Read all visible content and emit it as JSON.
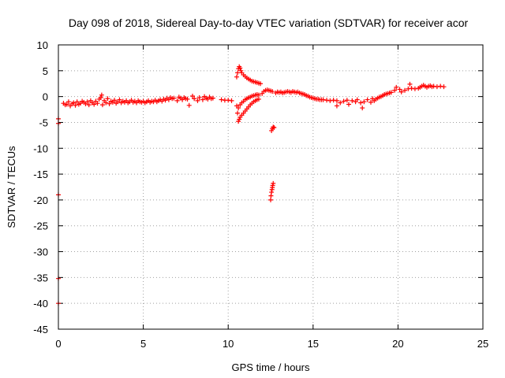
{
  "chart_data": {
    "type": "scatter",
    "title": "Day 098 of 2018, Sidereal Day-to-day VTEC variation (SDTVAR) for receiver acor",
    "xlabel": "GPS time / hours",
    "ylabel": "SDTVAR / TECUs",
    "xlim": [
      0,
      25
    ],
    "ylim": [
      -45,
      10
    ],
    "xticks": [
      0,
      5,
      10,
      15,
      20,
      25
    ],
    "yticks": [
      10,
      5,
      0,
      -5,
      -10,
      -15,
      -20,
      -25,
      -30,
      -35,
      -40,
      -45
    ],
    "grid": true,
    "marker": "plus",
    "series": [
      {
        "name": "SDTVAR",
        "color": "#ff0000",
        "points": [
          [
            0.0,
            -4.3
          ],
          [
            0.0,
            -5.2
          ],
          [
            0.0,
            -19.0
          ],
          [
            0.0,
            -35.2
          ],
          [
            0.0,
            -40.0
          ],
          [
            0.3,
            -1.3
          ],
          [
            0.4,
            -1.6
          ],
          [
            0.5,
            -1.5
          ],
          [
            0.6,
            -1.0
          ],
          [
            0.7,
            -1.8
          ],
          [
            0.8,
            -1.4
          ],
          [
            0.9,
            -1.2
          ],
          [
            1.0,
            -1.7
          ],
          [
            1.1,
            -1.0
          ],
          [
            1.2,
            -1.5
          ],
          [
            1.3,
            -1.3
          ],
          [
            1.4,
            -0.9
          ],
          [
            1.5,
            -1.1
          ],
          [
            1.6,
            -1.4
          ],
          [
            1.7,
            -1.0
          ],
          [
            1.8,
            -1.6
          ],
          [
            1.9,
            -0.8
          ],
          [
            2.0,
            -1.2
          ],
          [
            2.1,
            -1.5
          ],
          [
            2.2,
            -0.9
          ],
          [
            2.3,
            -1.3
          ],
          [
            2.4,
            -0.5
          ],
          [
            2.5,
            -0.2
          ],
          [
            2.55,
            0.3
          ],
          [
            2.6,
            -1.6
          ],
          [
            2.7,
            -0.8
          ],
          [
            2.8,
            -1.2
          ],
          [
            2.9,
            -0.4
          ],
          [
            3.0,
            -1.4
          ],
          [
            3.1,
            -0.9
          ],
          [
            3.2,
            -1.1
          ],
          [
            3.3,
            -0.7
          ],
          [
            3.4,
            -1.3
          ],
          [
            3.5,
            -1.0
          ],
          [
            3.6,
            -0.6
          ],
          [
            3.7,
            -1.2
          ],
          [
            3.8,
            -0.9
          ],
          [
            3.9,
            -1.1
          ],
          [
            4.0,
            -0.8
          ],
          [
            4.1,
            -1.2
          ],
          [
            4.2,
            -1.0
          ],
          [
            4.3,
            -0.7
          ],
          [
            4.4,
            -1.1
          ],
          [
            4.5,
            -0.9
          ],
          [
            4.6,
            -1.2
          ],
          [
            4.7,
            -0.8
          ],
          [
            4.8,
            -1.0
          ],
          [
            4.9,
            -1.1
          ],
          [
            5.0,
            -0.9
          ],
          [
            5.1,
            -1.2
          ],
          [
            5.2,
            -1.0
          ],
          [
            5.3,
            -0.8
          ],
          [
            5.4,
            -1.1
          ],
          [
            5.5,
            -0.9
          ],
          [
            5.6,
            -1.0
          ],
          [
            5.7,
            -0.7
          ],
          [
            5.8,
            -1.0
          ],
          [
            5.9,
            -0.8
          ],
          [
            6.0,
            -0.6
          ],
          [
            6.1,
            -0.9
          ],
          [
            6.2,
            -0.5
          ],
          [
            6.3,
            -0.7
          ],
          [
            6.4,
            -0.3
          ],
          [
            6.5,
            -0.6
          ],
          [
            6.6,
            -0.2
          ],
          [
            6.7,
            -0.4
          ],
          [
            6.8,
            -0.3
          ],
          [
            7.0,
            -0.8
          ],
          [
            7.1,
            -0.1
          ],
          [
            7.2,
            -0.3
          ],
          [
            7.3,
            -0.6
          ],
          [
            7.4,
            -0.2
          ],
          [
            7.5,
            -0.4
          ],
          [
            7.6,
            -0.5
          ],
          [
            7.7,
            -1.7
          ],
          [
            7.9,
            0.1
          ],
          [
            8.0,
            -0.4
          ],
          [
            8.2,
            -0.8
          ],
          [
            8.3,
            -0.2
          ],
          [
            8.5,
            -0.6
          ],
          [
            8.6,
            0.0
          ],
          [
            8.7,
            -0.3
          ],
          [
            8.8,
            -0.5
          ],
          [
            8.9,
            -0.1
          ],
          [
            9.0,
            -0.4
          ],
          [
            9.1,
            -0.3
          ],
          [
            9.6,
            -0.6
          ],
          [
            9.8,
            -0.7
          ],
          [
            10.0,
            -0.7
          ],
          [
            10.2,
            -0.8
          ],
          [
            10.5,
            3.8
          ],
          [
            10.55,
            4.6
          ],
          [
            10.6,
            5.4
          ],
          [
            10.65,
            5.8
          ],
          [
            10.7,
            5.5
          ],
          [
            10.75,
            5.0
          ],
          [
            10.8,
            4.6
          ],
          [
            10.9,
            4.2
          ],
          [
            11.0,
            3.9
          ],
          [
            11.1,
            3.6
          ],
          [
            11.2,
            3.4
          ],
          [
            11.3,
            3.2
          ],
          [
            11.4,
            3.0
          ],
          [
            11.5,
            2.9
          ],
          [
            11.6,
            2.8
          ],
          [
            11.7,
            2.7
          ],
          [
            11.8,
            2.6
          ],
          [
            11.9,
            2.5
          ],
          [
            10.5,
            -1.8
          ],
          [
            10.55,
            -3.2
          ],
          [
            10.6,
            -2.2
          ],
          [
            10.7,
            -1.6
          ],
          [
            10.8,
            -1.2
          ],
          [
            10.9,
            -0.9
          ],
          [
            11.0,
            -0.6
          ],
          [
            11.1,
            -0.4
          ],
          [
            11.2,
            -0.2
          ],
          [
            11.3,
            -0.1
          ],
          [
            11.4,
            0.1
          ],
          [
            11.5,
            0.2
          ],
          [
            11.6,
            0.3
          ],
          [
            11.7,
            0.4
          ],
          [
            11.8,
            0.3
          ],
          [
            10.6,
            -4.8
          ],
          [
            10.65,
            -4.4
          ],
          [
            10.7,
            -4.0
          ],
          [
            10.8,
            -3.6
          ],
          [
            10.9,
            -3.2
          ],
          [
            11.0,
            -2.8
          ],
          [
            11.1,
            -2.4
          ],
          [
            11.2,
            -2.0
          ],
          [
            11.3,
            -1.6
          ],
          [
            11.4,
            -1.3
          ],
          [
            11.5,
            -1.0
          ],
          [
            11.6,
            -0.8
          ],
          [
            11.7,
            -0.6
          ],
          [
            11.8,
            -0.5
          ],
          [
            12.0,
            0.6
          ],
          [
            12.1,
            1.0
          ],
          [
            12.2,
            1.2
          ],
          [
            12.3,
            1.3
          ],
          [
            12.4,
            1.2
          ],
          [
            12.5,
            1.1
          ],
          [
            12.6,
            1.0
          ],
          [
            12.55,
            -6.6
          ],
          [
            12.6,
            -6.2
          ],
          [
            12.65,
            -5.9
          ],
          [
            12.7,
            -6.0
          ],
          [
            12.5,
            -20.0
          ],
          [
            12.52,
            -19.2
          ],
          [
            12.55,
            -18.5
          ],
          [
            12.58,
            -18.0
          ],
          [
            12.6,
            -17.6
          ],
          [
            12.62,
            -17.2
          ],
          [
            12.65,
            -16.8
          ],
          [
            12.8,
            0.7
          ],
          [
            12.9,
            0.9
          ],
          [
            13.0,
            0.8
          ],
          [
            13.1,
            0.9
          ],
          [
            13.2,
            0.7
          ],
          [
            13.3,
            0.8
          ],
          [
            13.4,
            0.9
          ],
          [
            13.5,
            1.0
          ],
          [
            13.6,
            0.9
          ],
          [
            13.7,
            0.8
          ],
          [
            13.8,
            1.0
          ],
          [
            13.9,
            0.9
          ],
          [
            14.0,
            0.8
          ],
          [
            14.1,
            0.9
          ],
          [
            14.2,
            0.7
          ],
          [
            14.3,
            0.6
          ],
          [
            14.4,
            0.5
          ],
          [
            14.5,
            0.4
          ],
          [
            14.6,
            0.2
          ],
          [
            14.7,
            0.1
          ],
          [
            14.8,
            -0.1
          ],
          [
            14.9,
            -0.2
          ],
          [
            15.0,
            -0.3
          ],
          [
            15.1,
            -0.4
          ],
          [
            15.2,
            -0.5
          ],
          [
            15.3,
            -0.5
          ],
          [
            15.4,
            -0.6
          ],
          [
            15.5,
            -0.6
          ],
          [
            15.6,
            -0.6
          ],
          [
            15.8,
            -0.7
          ],
          [
            16.0,
            -0.8
          ],
          [
            16.2,
            -0.7
          ],
          [
            16.4,
            -0.8
          ],
          [
            16.4,
            -1.8
          ],
          [
            16.6,
            -1.2
          ],
          [
            16.8,
            -0.9
          ],
          [
            17.0,
            -0.7
          ],
          [
            17.1,
            -1.5
          ],
          [
            17.3,
            -0.8
          ],
          [
            17.5,
            -1.0
          ],
          [
            17.6,
            -0.6
          ],
          [
            17.8,
            -1.2
          ],
          [
            17.9,
            -2.2
          ],
          [
            18.0,
            -1.0
          ],
          [
            18.2,
            -0.6
          ],
          [
            18.4,
            -1.1
          ],
          [
            18.5,
            -0.4
          ],
          [
            18.6,
            -0.8
          ],
          [
            18.7,
            -0.5
          ],
          [
            18.8,
            -0.3
          ],
          [
            18.9,
            -0.1
          ],
          [
            19.0,
            0.0
          ],
          [
            19.1,
            0.2
          ],
          [
            19.2,
            0.4
          ],
          [
            19.3,
            0.5
          ],
          [
            19.4,
            0.6
          ],
          [
            19.5,
            0.7
          ],
          [
            19.6,
            0.8
          ],
          [
            19.8,
            1.2
          ],
          [
            19.9,
            1.8
          ],
          [
            20.1,
            1.4
          ],
          [
            20.2,
            0.9
          ],
          [
            20.4,
            1.2
          ],
          [
            20.6,
            1.5
          ],
          [
            20.7,
            2.4
          ],
          [
            20.8,
            1.6
          ],
          [
            21.0,
            1.5
          ],
          [
            21.2,
            1.6
          ],
          [
            21.3,
            1.8
          ],
          [
            21.4,
            2.0
          ],
          [
            21.5,
            2.2
          ],
          [
            21.6,
            2.0
          ],
          [
            21.7,
            1.8
          ],
          [
            21.8,
            2.0
          ],
          [
            21.9,
            2.1
          ],
          [
            22.0,
            1.9
          ],
          [
            22.1,
            2.0
          ],
          [
            22.3,
            1.9
          ],
          [
            22.5,
            2.0
          ],
          [
            22.7,
            1.9
          ]
        ]
      }
    ]
  }
}
